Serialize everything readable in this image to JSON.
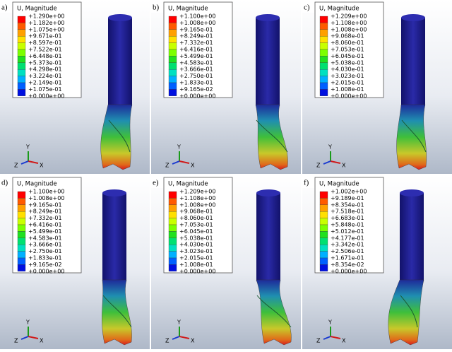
{
  "panels": [
    {
      "label": "a)",
      "legend": {
        "title": "U, Magnitude",
        "values": [
          "+1.290e+00",
          "+1.182e+00",
          "+1.075e+00",
          "+9.671e-01",
          "+8.597e-01",
          "+7.522e-01",
          "+6.448e-01",
          "+5.373e-01",
          "+4.298e-01",
          "+3.224e-01",
          "+2.149e-01",
          "+1.075e-01",
          "+0.000e+00"
        ]
      },
      "triad": {
        "y": "Y",
        "z": "Z",
        "x": "X"
      }
    },
    {
      "label": "b)",
      "legend": {
        "title": "U, Magnitude",
        "values": [
          "+1.100e+00",
          "+1.008e+00",
          "+9.165e-01",
          "+8.249e-01",
          "+7.332e-01",
          "+6.416e-01",
          "+5.499e-01",
          "+4.583e-01",
          "+3.666e-01",
          "+2.750e-01",
          "+1.833e-01",
          "+9.165e-02",
          "+0.000e+00"
        ]
      },
      "triad": {
        "y": "Y",
        "z": "Z",
        "x": "X"
      }
    },
    {
      "label": "c)",
      "legend": {
        "title": "U, Magnitude",
        "values": [
          "+1.209e+00",
          "+1.108e+00",
          "+1.008e+00",
          "+9.068e-01",
          "+8.060e-01",
          "+7.053e-01",
          "+6.045e-01",
          "+5.038e-01",
          "+4.030e-01",
          "+3.023e-01",
          "+2.015e-01",
          "+1.008e-01",
          "+0.000e+00"
        ]
      },
      "triad": {
        "y": "Y",
        "z": "Z",
        "x": "X"
      }
    },
    {
      "label": "d)",
      "legend": {
        "title": "U, Magnitude",
        "values": [
          "+1.100e+00",
          "+1.008e+00",
          "+9.165e-01",
          "+8.249e-01",
          "+7.332e-01",
          "+6.416e-01",
          "+5.499e-01",
          "+4.583e-01",
          "+3.666e-01",
          "+2.750e-01",
          "+1.833e-01",
          "+9.165e-02",
          "+0.000e+00"
        ]
      },
      "triad": {
        "y": "Y",
        "z": "Z",
        "x": "X"
      }
    },
    {
      "label": "e)",
      "legend": {
        "title": "U, Magnitude",
        "values": [
          "+1.209e+00",
          "+1.108e+00",
          "+1.008e+00",
          "+9.068e-01",
          "+8.060e-01",
          "+7.053e-01",
          "+6.045e-01",
          "+5.038e-01",
          "+4.030e-01",
          "+3.023e-01",
          "+2.015e-01",
          "+1.008e-01",
          "+0.000e+00"
        ]
      },
      "triad": {
        "y": "Y",
        "z": "Z",
        "x": "X"
      }
    },
    {
      "label": "f)",
      "legend": {
        "title": "U, Magnitude",
        "values": [
          "+1.002e+00",
          "+9.189e-01",
          "+8.354e-01",
          "+7.518e-01",
          "+6.683e-01",
          "+5.848e-01",
          "+5.012e-01",
          "+4.177e-01",
          "+3.342e-01",
          "+2.506e-01",
          "+1.671e-01",
          "+8.354e-02",
          "+0.000e+00"
        ]
      },
      "triad": {
        "y": "Y",
        "z": "Z",
        "x": "X"
      }
    }
  ]
}
